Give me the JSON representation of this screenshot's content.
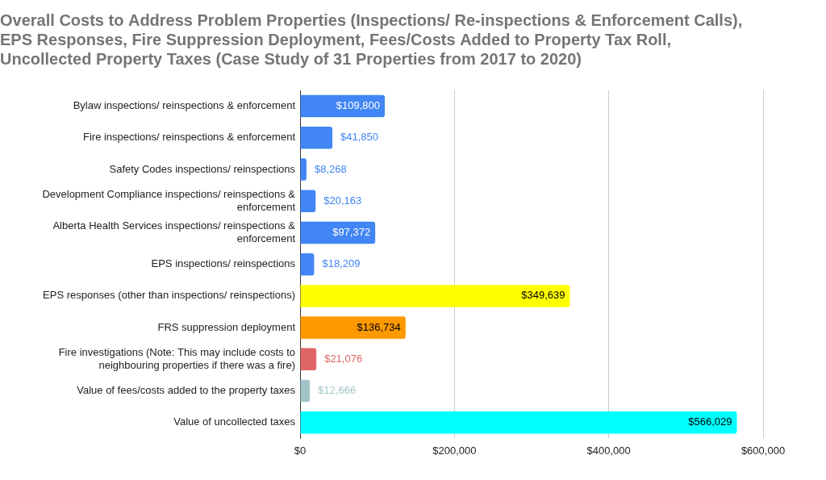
{
  "chart_data": {
    "type": "bar",
    "orientation": "horizontal",
    "title": "Overall Costs to Address Problem Properties (Inspections/ Re-inspections & Enforcement Calls), EPS Responses, Fire Suppression Deployment, Fees/Costs Added to Property Tax Roll, Uncollected Property Taxes (Case Study of 31 Properties from 2017 to 2020)",
    "categories": [
      "Bylaw inspections/ reinspections & enforcement",
      "Fire inspections/ reinspections & enforcement",
      "Safety Codes inspections/ reinspections",
      "Development Compliance inspections/ reinspections & enforcement",
      "Alberta Health Services inspections/ reinspections & enforcement",
      "EPS inspections/ reinspections",
      "EPS responses (other than inspections/ reinspections)",
      "FRS suppression deployment",
      "Fire investigations (Note: This may include costs to neighbouring properties if there was a fire)",
      "Value of fees/costs added to the property taxes",
      "Value of uncollected taxes"
    ],
    "values": [
      109800,
      41850,
      8268,
      20163,
      97372,
      18209,
      349639,
      136734,
      21076,
      12666,
      566029
    ],
    "value_labels": [
      "$109,800",
      "$41,850",
      "$8,268",
      "$20,163",
      "$97,372",
      "$18,209",
      "$349,639",
      "$136,734",
      "$21,076",
      "$12,666",
      "$566,029"
    ],
    "colors": [
      "#4285f4",
      "#4285f4",
      "#4285f4",
      "#4285f4",
      "#4285f4",
      "#4285f4",
      "#ffff00",
      "#ff9900",
      "#e06666",
      "#a2c4c9",
      "#00ffff"
    ],
    "xlim": [
      0,
      600000
    ],
    "xticks": [
      {
        "value": 0,
        "label": "$0"
      },
      {
        "value": 200000,
        "label": "$200,000"
      },
      {
        "value": 400000,
        "label": "$400,000"
      },
      {
        "value": 600000,
        "label": "$600,000"
      }
    ],
    "grid": true,
    "data_labels": true
  }
}
